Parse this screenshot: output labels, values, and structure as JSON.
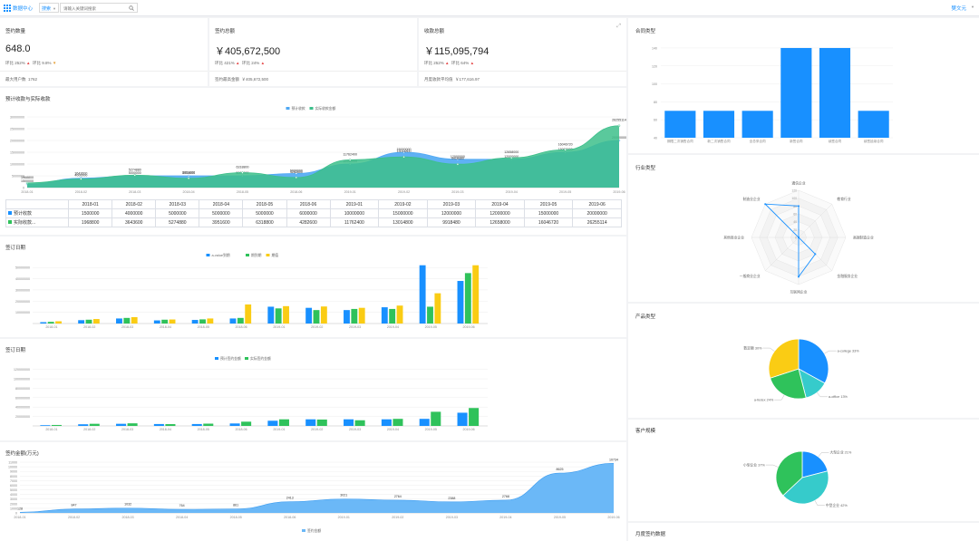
{
  "topbar": {
    "app_title": "数据中心",
    "filter_value": "搜索",
    "search_placeholder": "请输入关键词搜索",
    "user": "樊文元"
  },
  "kpis": [
    {
      "title": "签约数量",
      "value": "648.0",
      "mom_label": "环比",
      "mom": "252%",
      "yoy_label": "环比",
      "yoy": "9.8%",
      "foot_label": "最大用户数",
      "foot_value": "1762"
    },
    {
      "title": "签约总额",
      "value": "￥405,672,500",
      "mom_label": "环比",
      "mom": "421%",
      "yoy_label": "环比",
      "yoy": "24%",
      "foot_label": "签约最高金额",
      "foot_value": "￥405,672,500"
    },
    {
      "title": "收款总额",
      "value": "￥115,095,794",
      "mom_label": "环比",
      "mom": "252%",
      "yoy_label": "环比",
      "yoy": "64%",
      "foot_label": "月度收款平均值",
      "foot_value": "￥177,616.97"
    }
  ],
  "colors": {
    "blue": "#1890ff",
    "green": "#2fc25b",
    "yellow": "#facc14",
    "teal": "#36cbcb",
    "area_blue": "#4fa8f3",
    "area_green": "#3dbf8b"
  },
  "panels": {
    "forecast_title": "预计收款与实际收款",
    "sign1_title": "签订日期",
    "sign2_title": "签订日期",
    "amount_title": "签约金额(万元)",
    "contract_type_title": "合同类型",
    "industry_title": "行业类型",
    "product_title": "产品类型",
    "customer_title": "客户规模",
    "monthly_title": "月度签约数据"
  },
  "table": {
    "headers": [
      "2018-01",
      "2018-02",
      "2018-03",
      "2018-04",
      "2018-05",
      "2018-06",
      "2019-01",
      "2019-02",
      "2019-03",
      "2019-04",
      "2019-05",
      "2019-06"
    ],
    "rows": [
      {
        "label": "预计收款",
        "values": [
          "1500000",
          "4000000",
          "5000000",
          "5000000",
          "5000000",
          "6000000",
          "10000000",
          "15000000",
          "12000000",
          "12000000",
          "15000000",
          "20000000"
        ]
      },
      {
        "label": "实际收款...",
        "values": [
          "1968800",
          "3643600",
          "5274880",
          "3951600",
          "6318800",
          "4282600",
          "11762400",
          "13014800",
          "9918480",
          "12658000",
          "16046720",
          "26255114"
        ]
      }
    ]
  },
  "chart_data": [
    {
      "type": "area",
      "title": "预计收款与实际收款",
      "categories": [
        "2018-01",
        "2018-02",
        "2018-03",
        "2018-04",
        "2018-05",
        "2018-06",
        "2019-01",
        "2019-02",
        "2019-03",
        "2019-04",
        "2019-05",
        "2019-06"
      ],
      "series": [
        {
          "name": "预计收款",
          "values": [
            1500000,
            4000000,
            5000000,
            5000000,
            5000000,
            6000000,
            10000000,
            15000000,
            12000000,
            12000000,
            15000000,
            20000000
          ]
        },
        {
          "name": "实际收款金额",
          "values": [
            1968800,
            3643600,
            5274880,
            3951600,
            6318800,
            4282600,
            11762400,
            13014800,
            9918480,
            12658000,
            16046720,
            26255114
          ]
        }
      ],
      "yticks": [
        "0",
        "5000000",
        "10000000",
        "15000000",
        "20000000",
        "25000000",
        "30000000"
      ],
      "ylim": [
        0,
        30000000
      ]
    },
    {
      "type": "bar",
      "title": "签订日期",
      "categories": [
        "2018-01",
        "2018-02",
        "2018-03",
        "2018-04",
        "2018-05",
        "2018-06",
        "2019-01",
        "2019-02",
        "2019-03",
        "2019-04",
        "2019-05",
        "2019-06"
      ],
      "series": [
        {
          "name": "a-value到期",
          "values": [
            1200000,
            3000000,
            4500000,
            2800000,
            3200000,
            4500000,
            15000000,
            14000000,
            12000000,
            14500000,
            52000000,
            38000000
          ]
        },
        {
          "name": "期到期",
          "values": [
            1500000,
            3400000,
            5000000,
            3400000,
            3700000,
            5000000,
            13500000,
            12000000,
            13000000,
            13000000,
            15000000,
            45000000
          ]
        },
        {
          "name": "期值",
          "values": [
            2000000,
            4000000,
            5700000,
            3600000,
            4500000,
            17000000,
            15500000,
            15200000,
            14000000,
            16000000,
            27000000,
            52000000
          ]
        }
      ],
      "yticks": [
        "10000000",
        "20000000",
        "30000000",
        "40000000",
        "50000000"
      ],
      "ylim": [
        0,
        55000000
      ]
    },
    {
      "type": "bar",
      "title": "签订日期",
      "categories": [
        "2018-01",
        "2018-02",
        "2018-03",
        "2018-04",
        "2018-05",
        "2018-06",
        "2019-01",
        "2019-02",
        "2019-03",
        "2019-04",
        "2019-05",
        "2019-06"
      ],
      "series": [
        {
          "name": "预计签约金额",
          "values": [
            1500000,
            3500000,
            4500000,
            4000000,
            4000000,
            5200000,
            11000000,
            14000000,
            14000000,
            14000000,
            15000000,
            28000000
          ]
        },
        {
          "name": "实际签约金额",
          "values": [
            2000000,
            4500000,
            5500000,
            3800000,
            4800000,
            9000000,
            14000000,
            13500000,
            12000000,
            15000000,
            30000000,
            38000000
          ]
        }
      ],
      "yticks": [
        "20000000",
        "40000000",
        "60000000",
        "80000000",
        "100000000",
        "120000000"
      ],
      "ylim": [
        0,
        125000000
      ]
    },
    {
      "type": "area",
      "title": "签约金额(万元)",
      "categories": [
        "2018-01",
        "2018-02",
        "2018-03",
        "2018-04",
        "2018-05",
        "2018-06",
        "2019-01",
        "2019-02",
        "2019-03",
        "2019-04",
        "2019-05",
        "2019-06"
      ],
      "series": [
        {
          "name": "签约金额",
          "values": [
            128,
            847,
            1032,
            764,
            861,
            2413,
            3021,
            2764,
            2388,
            2768,
            8625,
            10734
          ]
        }
      ],
      "yticks": [
        "0",
        "1000",
        "2000",
        "3000",
        "4000",
        "5000",
        "6000",
        "7000",
        "8000",
        "9000",
        "10000",
        "11000"
      ],
      "ylim": [
        0,
        11000
      ]
    },
    {
      "type": "bar",
      "title": "合同类型",
      "categories": [
        "期限二次销售合同",
        "新二次销售合同",
        "全总采合同",
        "新签合同",
        "续签合同",
        "续签延续合同"
      ],
      "values": [
        70,
        70,
        70,
        140,
        140,
        70
      ],
      "yticks": [
        "40",
        "60",
        "80",
        "100",
        "120",
        "140"
      ],
      "ylim": [
        40,
        145
      ]
    },
    {
      "type": "radar",
      "title": "行业类型",
      "indicators": [
        "通信企业",
        "教育行业",
        "高端制造企业",
        "金融服务企业",
        "互联网企业",
        "一般商业企业",
        "其他商业企业",
        "制造业企业"
      ],
      "values": [
        80,
        0,
        0,
        60,
        100,
        0,
        0,
        120
      ],
      "rticks": [
        "0",
        "20",
        "40",
        "60",
        "80",
        "100",
        "120"
      ],
      "rmax": 120
    },
    {
      "type": "pie",
      "title": "产品类型",
      "slices": [
        {
          "name": "a-college",
          "value": 33,
          "label": "a-college 33%"
        },
        {
          "name": "a-office",
          "value": 13,
          "label": "a-office 13%"
        },
        {
          "name": "a-fedex",
          "value": 24,
          "label": "a-fedex 24%"
        },
        {
          "name": "数定额",
          "value": 30,
          "label": "数定额 30%"
        }
      ]
    },
    {
      "type": "pie",
      "title": "客户规模",
      "slices": [
        {
          "name": "大型企业",
          "value": 21,
          "label": "大型企业 21%"
        },
        {
          "name": "中型企业",
          "value": 42,
          "label": "中型企业 42%"
        },
        {
          "name": "小型企业",
          "value": 37,
          "label": "小型企业 37%"
        }
      ]
    }
  ]
}
